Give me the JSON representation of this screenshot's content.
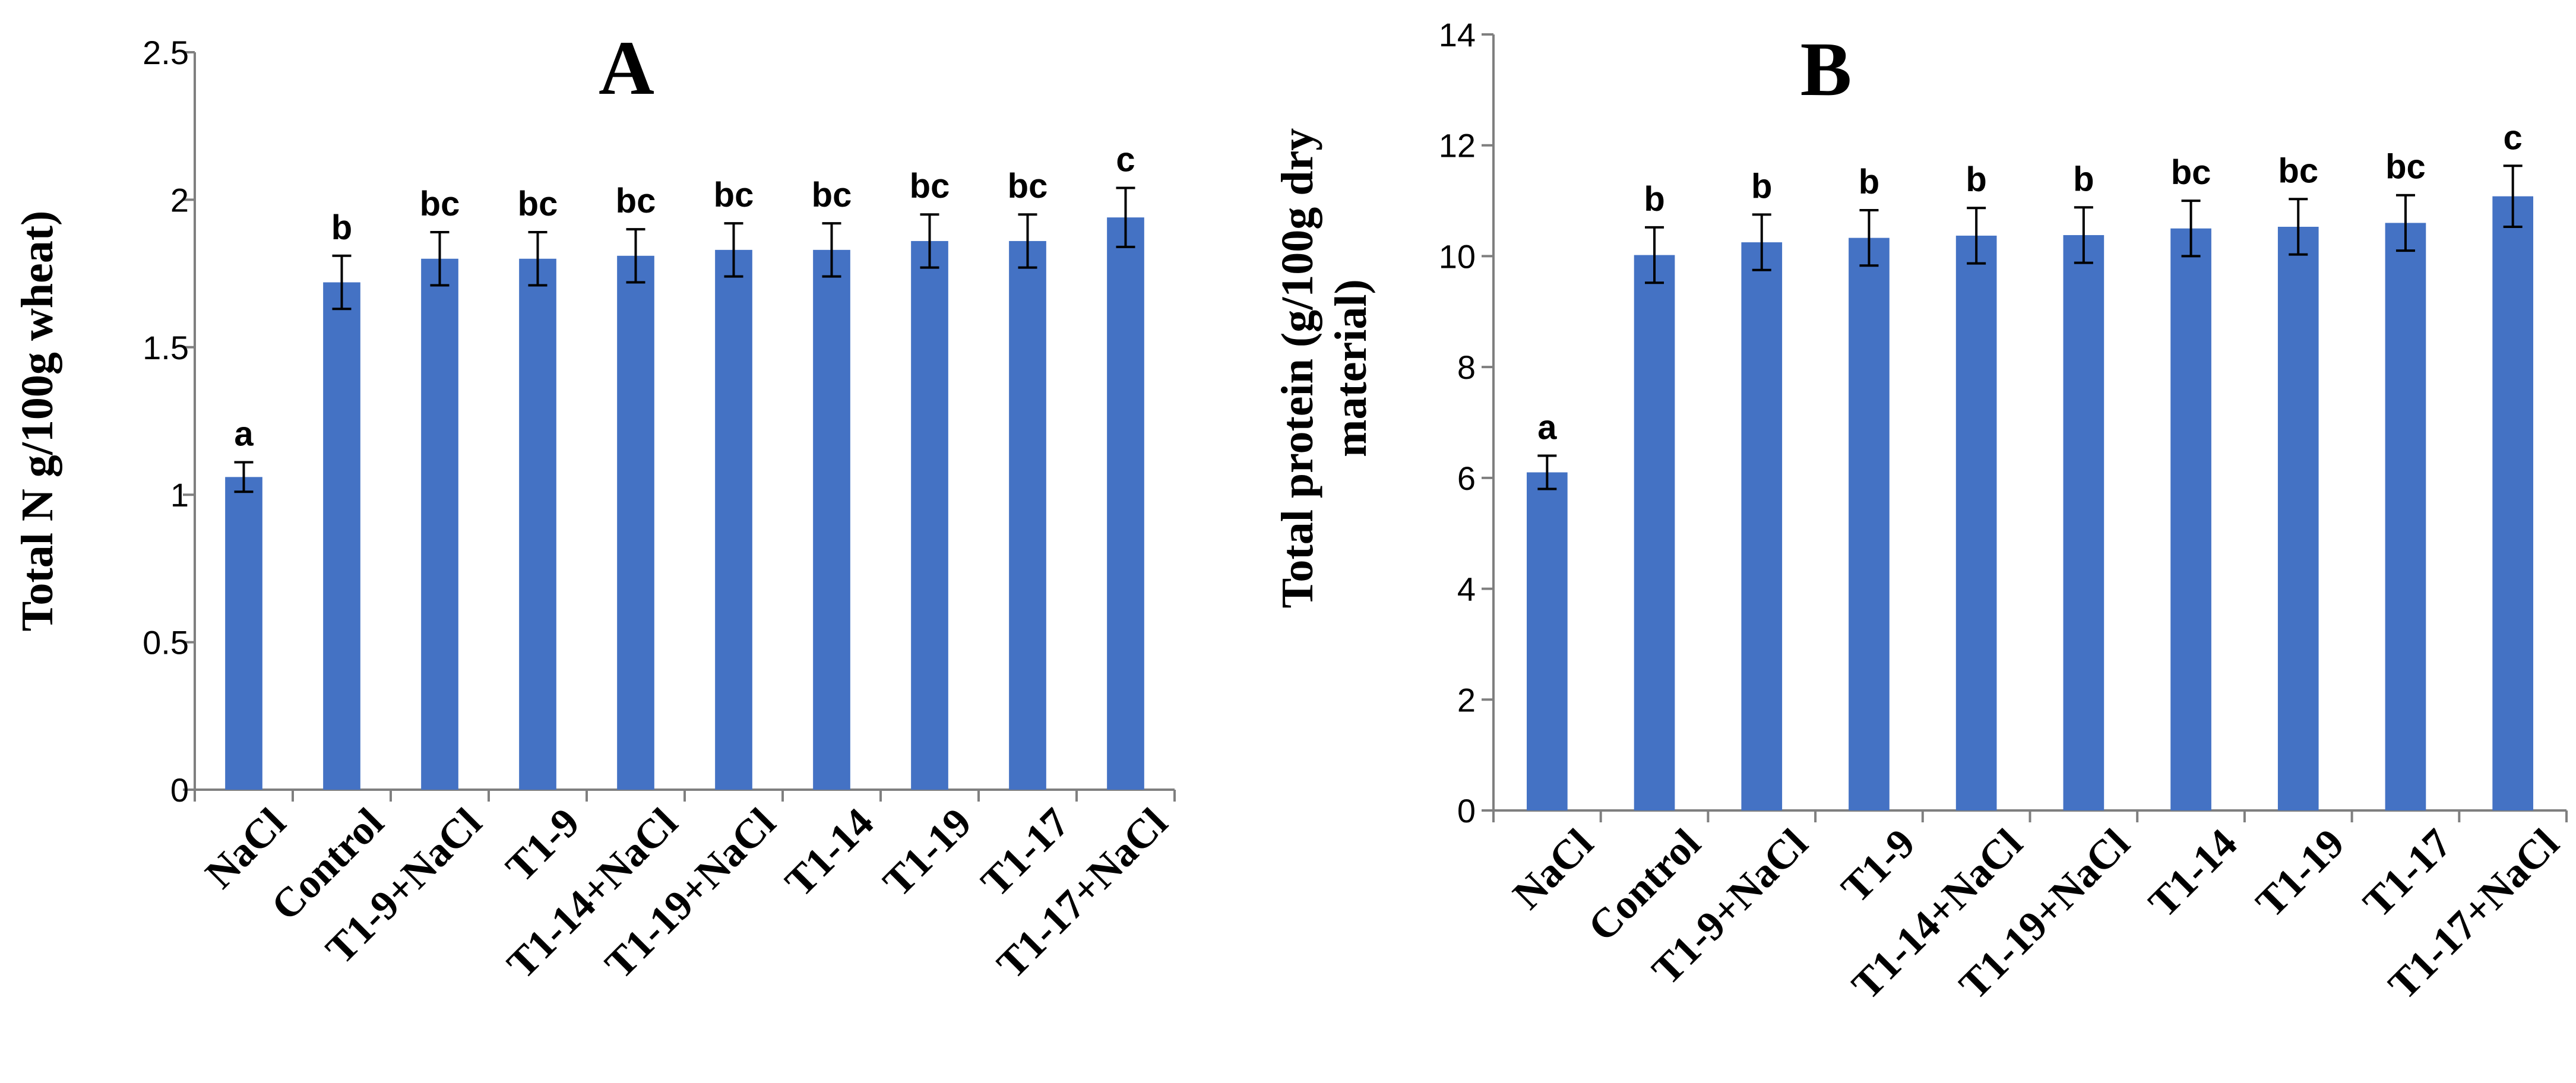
{
  "chart_data": [
    {
      "type": "bar",
      "title": "A",
      "xlabel": "",
      "ylabel": "Total N g/100g wheat)",
      "ylim": [
        0,
        2.5
      ],
      "yticks": [
        0,
        0.5,
        1,
        1.5,
        2,
        2.5
      ],
      "ytick_labels": [
        "0",
        "0.5",
        "1",
        "1.5",
        "2",
        "2.5"
      ],
      "categories": [
        "NaCl",
        "Control",
        "T1-9+NaCl",
        "T1-9",
        "T1-14+NaCl",
        "T1-19+NaCl",
        "T1-14",
        "T1-19",
        "T1-17",
        "T1-17+NaCl"
      ],
      "values": [
        1.06,
        1.72,
        1.8,
        1.8,
        1.81,
        1.83,
        1.83,
        1.86,
        1.86,
        1.94
      ],
      "errors": [
        0.05,
        0.09,
        0.09,
        0.09,
        0.09,
        0.09,
        0.09,
        0.09,
        0.09,
        0.1
      ],
      "significance": [
        "a",
        "b",
        "bc",
        "bc",
        "bc",
        "bc",
        "bc",
        "bc",
        "bc",
        "c"
      ],
      "bar_color": "#4472C4"
    },
    {
      "type": "bar",
      "title": "B",
      "xlabel": "",
      "ylabel": "Total protein (g/100g dry material)",
      "ylabel_lines": [
        "Total protein (g/100g dry",
        "material)"
      ],
      "ylim": [
        0,
        14
      ],
      "yticks": [
        0,
        2,
        4,
        6,
        8,
        10,
        12,
        14
      ],
      "ytick_labels": [
        "0",
        "2",
        "4",
        "6",
        "8",
        "10",
        "12",
        "14"
      ],
      "categories": [
        "NaCl",
        "Control",
        "T1-9+NaCl",
        "T1-9",
        "T1-14+NaCl",
        "T1-19+NaCl",
        "T1-14",
        "T1-19",
        "T1-17",
        "T1-17+NaCl"
      ],
      "values": [
        6.1,
        10.02,
        10.25,
        10.33,
        10.37,
        10.38,
        10.5,
        10.53,
        10.6,
        11.08
      ],
      "errors": [
        0.3,
        0.5,
        0.5,
        0.5,
        0.5,
        0.5,
        0.5,
        0.5,
        0.5,
        0.55
      ],
      "significance": [
        "a",
        "b",
        "b",
        "b",
        "b",
        "b",
        "bc",
        "bc",
        "bc",
        "c"
      ],
      "bar_color": "#4472C4"
    }
  ]
}
